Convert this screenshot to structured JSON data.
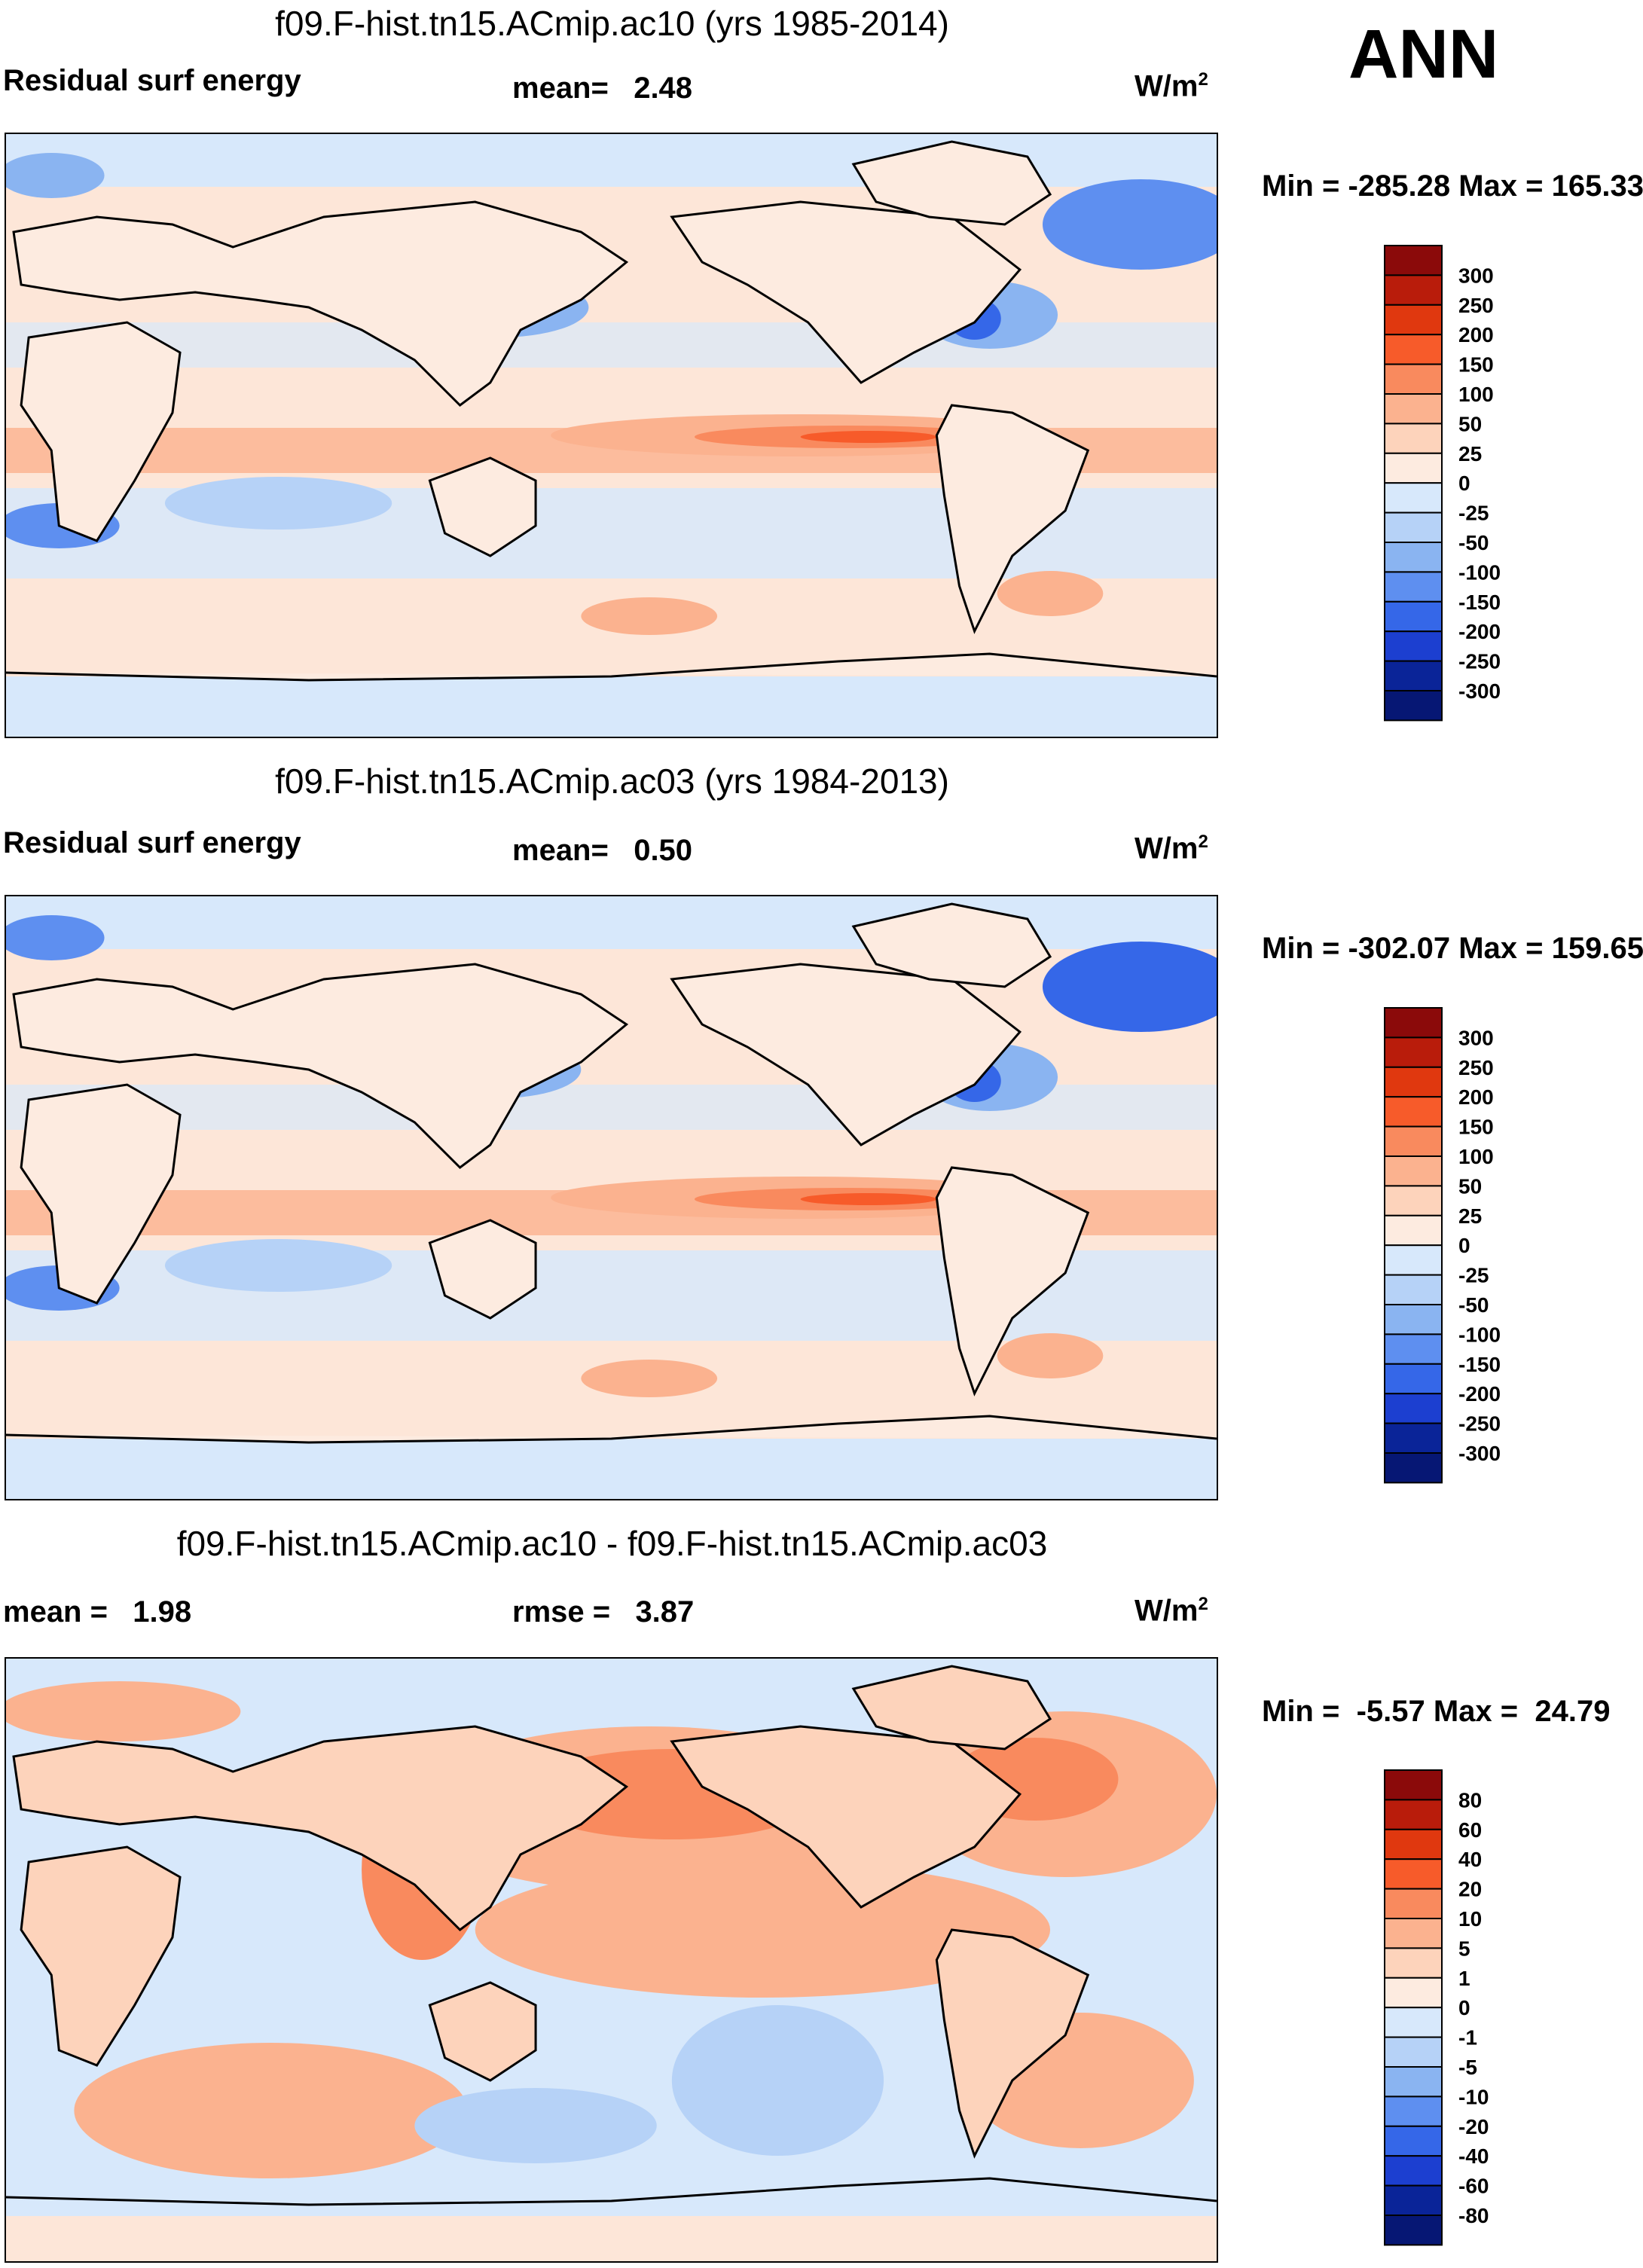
{
  "header": {
    "season": "ANN"
  },
  "panels": [
    {
      "title": "f09.F-hist.tn15.ACmip.ac10 (yrs 1985-2014)",
      "left_label": "Residual surf energy",
      "center_label": "mean=   2.48",
      "units_base": "W/m",
      "units_exp": "2",
      "minmax": "Min = -285.28 Max = 165.33",
      "legend": {
        "levels": [
          "300",
          "250",
          "200",
          "150",
          "100",
          "50",
          "25",
          "0",
          "-25",
          "-50",
          "-100",
          "-150",
          "-200",
          "-250",
          "-300"
        ],
        "colors": [
          "#8b0a0a",
          "#b91c0b",
          "#e0380f",
          "#f75b2a",
          "#f98a5e",
          "#fbb28f",
          "#fdd3bb",
          "#fdebe0",
          "#d7e8fb",
          "#b6d2f7",
          "#8ab4f1",
          "#5e8ff0",
          "#3567e8",
          "#1c3fd0",
          "#0a2498",
          "#061774"
        ]
      }
    },
    {
      "title": "f09.F-hist.tn15.ACmip.ac03 (yrs 1984-2013)",
      "left_label": "Residual surf energy",
      "center_label": "mean=   0.50",
      "units_base": "W/m",
      "units_exp": "2",
      "minmax": "Min = -302.07 Max = 159.65",
      "legend": {
        "levels": [
          "300",
          "250",
          "200",
          "150",
          "100",
          "50",
          "25",
          "0",
          "-25",
          "-50",
          "-100",
          "-150",
          "-200",
          "-250",
          "-300"
        ],
        "colors": [
          "#8b0a0a",
          "#b91c0b",
          "#e0380f",
          "#f75b2a",
          "#f98a5e",
          "#fbb28f",
          "#fdd3bb",
          "#fdebe0",
          "#d7e8fb",
          "#b6d2f7",
          "#8ab4f1",
          "#5e8ff0",
          "#3567e8",
          "#1c3fd0",
          "#0a2498",
          "#061774"
        ]
      }
    },
    {
      "title": "f09.F-hist.tn15.ACmip.ac10 - f09.F-hist.tn15.ACmip.ac03",
      "left_label": "mean =   1.98",
      "center_label": "rmse =   3.87",
      "units_base": "W/m",
      "units_exp": "2",
      "minmax": "Min =  -5.57 Max =  24.79",
      "legend": {
        "levels": [
          "80",
          "60",
          "40",
          "20",
          "10",
          "5",
          "1",
          "0",
          "-1",
          "-5",
          "-10",
          "-20",
          "-40",
          "-60",
          "-80"
        ],
        "colors": [
          "#8b0a0a",
          "#b91c0b",
          "#e0380f",
          "#f75b2a",
          "#f98a5e",
          "#fbb28f",
          "#fdd3bb",
          "#fdebe0",
          "#d7e8fb",
          "#b6d2f7",
          "#8ab4f1",
          "#5e8ff0",
          "#3567e8",
          "#1c3fd0",
          "#0a2498",
          "#061774"
        ]
      }
    }
  ]
}
